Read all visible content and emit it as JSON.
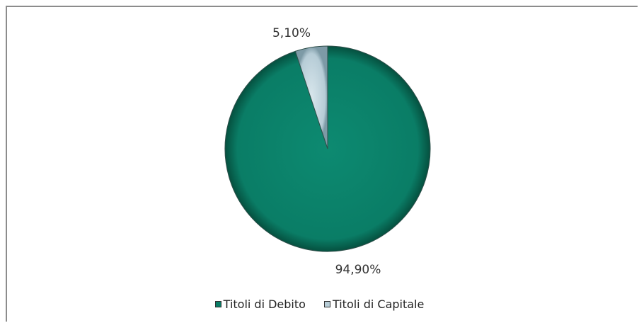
{
  "chart_data": {
    "type": "pie",
    "title": "",
    "categories": [
      "Titoli di Debito",
      "Titoli di Capitale"
    ],
    "values": [
      94.9,
      5.1
    ],
    "data_labels": [
      "94,90%",
      "5,10%"
    ],
    "colors": [
      "#0a7d66",
      "#b6ccd6"
    ],
    "start_angle_deg": 0,
    "direction": "clockwise",
    "legend_position": "bottom"
  }
}
